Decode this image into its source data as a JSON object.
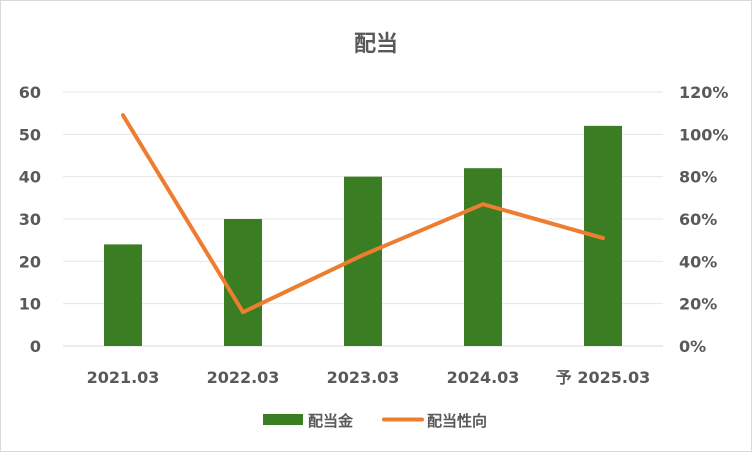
{
  "chart_data": {
    "type": "bar",
    "title": "配当",
    "categories": [
      "2021.03",
      "2022.03",
      "2023.03",
      "2024.03",
      "予 2025.03"
    ],
    "series": [
      {
        "name": "配当金",
        "type": "bar",
        "axis": "left",
        "color": "#3a7d22",
        "values": [
          24,
          30,
          40,
          42,
          52
        ]
      },
      {
        "name": "配当性向",
        "type": "line",
        "axis": "right",
        "color": "#ed7d31",
        "values": [
          1.09,
          0.16,
          0.43,
          0.67,
          0.51
        ]
      }
    ],
    "y_left": {
      "min": 0,
      "max": 60,
      "step": 10,
      "tick_labels": [
        "0",
        "10",
        "20",
        "30",
        "40",
        "50",
        "60"
      ]
    },
    "y_right": {
      "min": 0,
      "max": 1.2,
      "step": 0.2,
      "tick_labels": [
        "0%",
        "20%",
        "40%",
        "60%",
        "80%",
        "100%",
        "120%"
      ]
    },
    "grid": true,
    "legend": "bottom"
  }
}
